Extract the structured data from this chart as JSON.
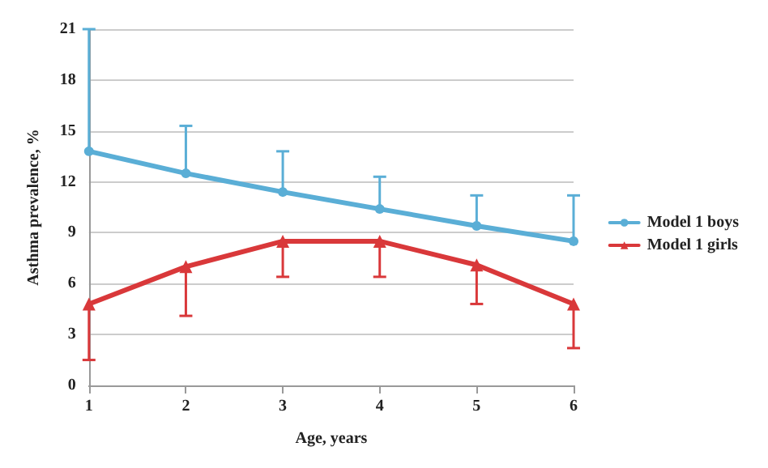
{
  "chart_data": {
    "type": "line",
    "xlabel": "Age, years",
    "ylabel": "Asthma prevalence, %",
    "x": [
      1,
      2,
      3,
      4,
      5,
      6
    ],
    "xlim": [
      1,
      6
    ],
    "xticks": [
      1,
      2,
      3,
      4,
      5,
      6
    ],
    "ylim": [
      0,
      21
    ],
    "yticks": [
      0,
      3,
      6,
      9,
      12,
      15,
      18,
      21
    ],
    "grid": "y",
    "legend": "right",
    "line_style": "solid",
    "series": [
      {
        "name": "Model 1 boys",
        "color": "#5aaed6",
        "marker": "circle",
        "values": [
          13.8,
          12.5,
          11.4,
          10.4,
          9.4,
          8.5
        ],
        "errors": [
          [
            13.8,
            21
          ],
          [
            12.5,
            15.3
          ],
          [
            11.4,
            13.8
          ],
          [
            10.4,
            12.3
          ],
          [
            9.4,
            11.2
          ],
          [
            8.5,
            11.2
          ]
        ]
      },
      {
        "name": "Model 1 girls",
        "color": "#d9383a",
        "marker": "triangle",
        "values": [
          4.8,
          7.0,
          8.5,
          8.5,
          7.1,
          4.8
        ],
        "errors": [
          [
            1.5,
            4.8
          ],
          [
            4.1,
            7.0
          ],
          [
            6.4,
            8.5
          ],
          [
            6.4,
            8.5
          ],
          [
            4.8,
            7.1
          ],
          [
            2.2,
            4.8
          ]
        ]
      }
    ]
  }
}
